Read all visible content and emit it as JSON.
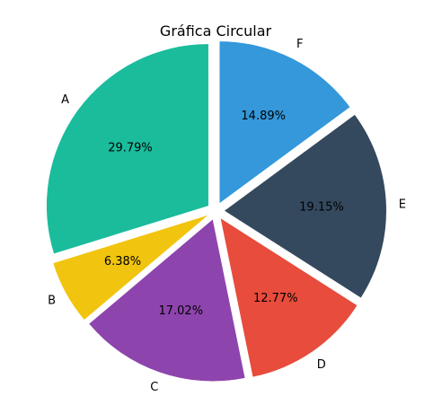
{
  "chart_data": {
    "type": "pie",
    "title": "Gráfica Circular",
    "slices": [
      {
        "label": "A",
        "value": 29.79,
        "pct_text": "29.79%",
        "color": "#1abc9c"
      },
      {
        "label": "B",
        "value": 6.38,
        "pct_text": "6.38%",
        "color": "#f1c40f"
      },
      {
        "label": "C",
        "value": 17.02,
        "pct_text": "17.02%",
        "color": "#8e44ad"
      },
      {
        "label": "D",
        "value": 12.77,
        "pct_text": "12.77%",
        "color": "#e74c3c"
      },
      {
        "label": "E",
        "value": 19.15,
        "pct_text": "19.15%",
        "color": "#34495e"
      },
      {
        "label": "F",
        "value": 14.89,
        "pct_text": "14.89%",
        "color": "#3498db"
      }
    ],
    "start_angle": "top (90°)",
    "direction": "counterclockwise",
    "exploded": true
  }
}
